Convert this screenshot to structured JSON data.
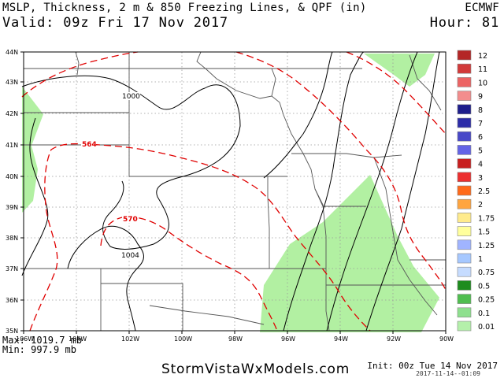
{
  "header": {
    "title": "MSLP, Thickness, 2 m & 850 Freezing Lines, & QPF (in)",
    "valid": "Valid: 09z Fri 17 Nov 2017",
    "model": "ECMWF",
    "hour": "Hour: 81"
  },
  "map": {
    "lat_labels": [
      "44N",
      "43N",
      "42N",
      "41N",
      "40N",
      "39N",
      "38N",
      "37N",
      "36N",
      "35N"
    ],
    "lon_labels": [
      "106W",
      "104W",
      "102W",
      "100W",
      "98W",
      "96W",
      "94W",
      "92W",
      "90W"
    ],
    "isobar_labels": [
      "1000",
      "1004"
    ],
    "thickness_labels": [
      "564",
      "570"
    ],
    "colors": {
      "qpf_fill": "#b2f0a2",
      "thickness_line": "#e00000",
      "isobar_line": "#000000",
      "border_line": "#555555"
    }
  },
  "colorbar": {
    "labels": [
      "12",
      "11",
      "10",
      "9",
      "8",
      "7",
      "6",
      "5",
      "4",
      "3",
      "2.5",
      "2",
      "1.75",
      "1.5",
      "1.25",
      "1",
      "0.75",
      "0.5",
      "0.25",
      "0.1",
      "0.01"
    ],
    "colors": [
      "#b42626",
      "#d23a3a",
      "#ec6464",
      "#f38d8d",
      "#1e1e8c",
      "#2c2ca8",
      "#4848c8",
      "#6464e6",
      "#c81e1e",
      "#ec2f2f",
      "#ff6a1a",
      "#ffa540",
      "#ffeb8c",
      "#ffff9c",
      "#a0b4ff",
      "#a6c8ff",
      "#c6dcff",
      "#1e8c1e",
      "#50be50",
      "#8ee08e",
      "#b4f0aa"
    ]
  },
  "footer": {
    "max": "Max: 1019.7 mb",
    "min": "Min: 997.9 mb",
    "site": "StormVistaWxModels.com",
    "init": "Init: 00z Tue 14 Nov 2017",
    "stamp": "2017-11-14--01:09"
  }
}
